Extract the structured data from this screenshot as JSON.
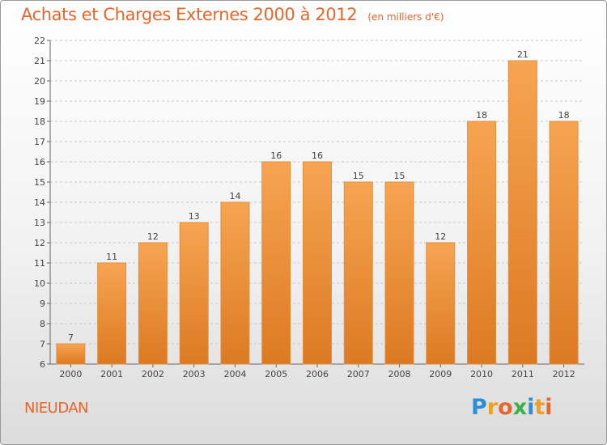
{
  "header": {
    "title": "Achats et Charges Externes 2000 à 2012",
    "subtitle": "(en milliers d'€)"
  },
  "footer": {
    "commune": "NIEUDAN",
    "brand": "Proxiti",
    "brand_letters": [
      {
        "ch": "P",
        "color": "#2a8fd6"
      },
      {
        "ch": "r",
        "color": "#f0a020"
      },
      {
        "ch": "o",
        "color": "#e8652b"
      },
      {
        "ch": "x",
        "color": "#3ab24a"
      },
      {
        "ch": "i",
        "color": "#2a8fd6"
      },
      {
        "ch": "t",
        "color": "#f0a020"
      },
      {
        "ch": "i",
        "color": "#e8652b"
      }
    ]
  },
  "chart_data": {
    "type": "bar",
    "title": "Achats et Charges Externes 2000 à 2012",
    "subtitle": "(en milliers d'€)",
    "categories": [
      "2000",
      "2001",
      "2002",
      "2003",
      "2004",
      "2005",
      "2006",
      "2007",
      "2008",
      "2009",
      "2010",
      "2011",
      "2012"
    ],
    "values": [
      7,
      11,
      12,
      13,
      14,
      16,
      16,
      15,
      15,
      12,
      18,
      21,
      18
    ],
    "ylim": [
      6,
      22
    ],
    "yticks": [
      6,
      7,
      8,
      9,
      10,
      11,
      12,
      13,
      14,
      15,
      16,
      17,
      18,
      19,
      20,
      21,
      22
    ],
    "grid": "horizontal dashed",
    "bar_color_top": "#f7a452",
    "bar_color_bottom": "#dc7a22"
  }
}
